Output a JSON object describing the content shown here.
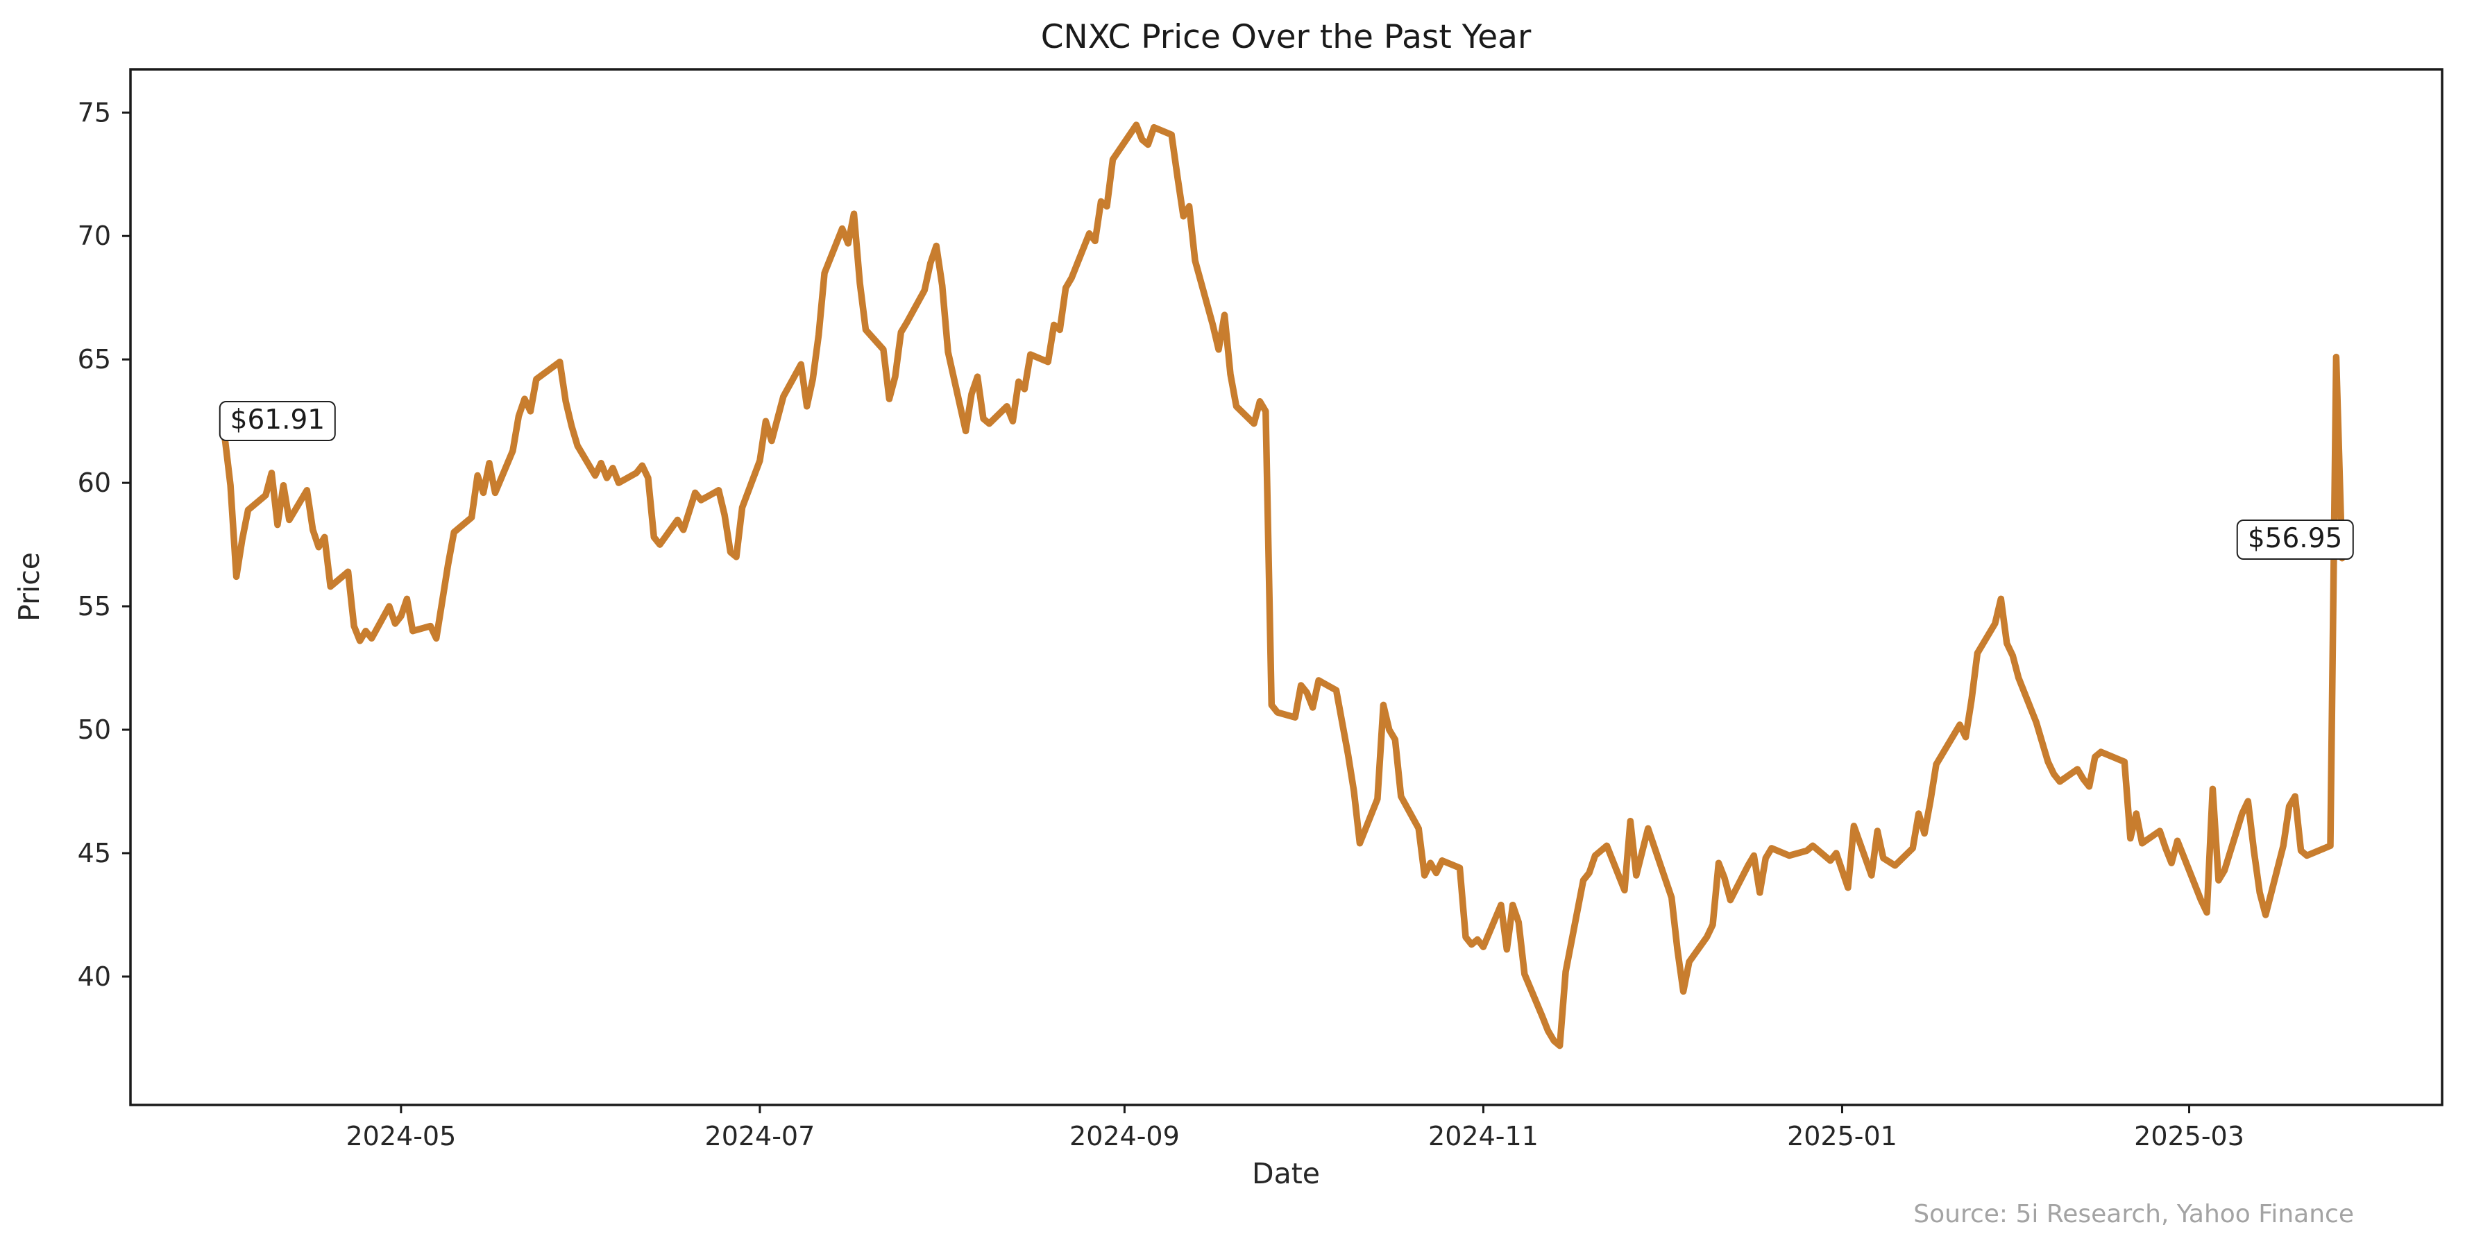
{
  "chart_data": {
    "type": "line",
    "title": "CNXC Price Over the Past Year",
    "xlabel": "Date",
    "ylabel": "Price",
    "line_color": "#C87D2E",
    "axis_color": "#1a1a1a",
    "text_color": "#262626",
    "grid": "off",
    "legend": "none",
    "xlim": [
      "2024-03-16",
      "2025-04-13"
    ],
    "ylim": [
      34.8,
      76.75
    ],
    "y_ticks": [
      40,
      45,
      50,
      55,
      60,
      65,
      70,
      75
    ],
    "x_ticks": [
      {
        "date": "2024-05-01",
        "label": "2024-05"
      },
      {
        "date": "2024-07-01",
        "label": "2024-07"
      },
      {
        "date": "2024-09-01",
        "label": "2024-09"
      },
      {
        "date": "2024-11-01",
        "label": "2024-11"
      },
      {
        "date": "2025-01-01",
        "label": "2025-01"
      },
      {
        "date": "2025-03-01",
        "label": "2025-03"
      }
    ],
    "annotations": [
      {
        "text": "$61.91",
        "date": "2024-04-10",
        "value": 62.5
      },
      {
        "text": "$56.95",
        "date": "2025-03-19",
        "value": 57.7
      }
    ],
    "series": [
      {
        "name": "CNXC",
        "points": [
          [
            "2024-04-01",
            61.91
          ],
          [
            "2024-04-02",
            59.9
          ],
          [
            "2024-04-03",
            56.2
          ],
          [
            "2024-04-04",
            57.7
          ],
          [
            "2024-04-05",
            58.9
          ],
          [
            "2024-04-08",
            59.5
          ],
          [
            "2024-04-09",
            60.4
          ],
          [
            "2024-04-10",
            58.3
          ],
          [
            "2024-04-11",
            59.9
          ],
          [
            "2024-04-12",
            58.5
          ],
          [
            "2024-04-15",
            59.7
          ],
          [
            "2024-04-16",
            58.1
          ],
          [
            "2024-04-17",
            57.4
          ],
          [
            "2024-04-18",
            57.8
          ],
          [
            "2024-04-19",
            55.8
          ],
          [
            "2024-04-22",
            56.4
          ],
          [
            "2024-04-23",
            54.2
          ],
          [
            "2024-04-24",
            53.6
          ],
          [
            "2024-04-25",
            54.0
          ],
          [
            "2024-04-26",
            53.7
          ],
          [
            "2024-04-29",
            55.0
          ],
          [
            "2024-04-30",
            54.3
          ],
          [
            "2024-05-01",
            54.6
          ],
          [
            "2024-05-02",
            55.3
          ],
          [
            "2024-05-03",
            54.0
          ],
          [
            "2024-05-06",
            54.2
          ],
          [
            "2024-05-07",
            53.7
          ],
          [
            "2024-05-08",
            55.2
          ],
          [
            "2024-05-09",
            56.7
          ],
          [
            "2024-05-10",
            58.0
          ],
          [
            "2024-05-13",
            58.6
          ],
          [
            "2024-05-14",
            60.3
          ],
          [
            "2024-05-15",
            59.6
          ],
          [
            "2024-05-16",
            60.8
          ],
          [
            "2024-05-17",
            59.6
          ],
          [
            "2024-05-20",
            61.3
          ],
          [
            "2024-05-21",
            62.7
          ],
          [
            "2024-05-22",
            63.4
          ],
          [
            "2024-05-23",
            62.9
          ],
          [
            "2024-05-24",
            64.2
          ],
          [
            "2024-05-28",
            64.9
          ],
          [
            "2024-05-29",
            63.3
          ],
          [
            "2024-05-30",
            62.3
          ],
          [
            "2024-05-31",
            61.5
          ],
          [
            "2024-06-03",
            60.3
          ],
          [
            "2024-06-04",
            60.8
          ],
          [
            "2024-06-05",
            60.2
          ],
          [
            "2024-06-06",
            60.6
          ],
          [
            "2024-06-07",
            60.0
          ],
          [
            "2024-06-10",
            60.4
          ],
          [
            "2024-06-11",
            60.7
          ],
          [
            "2024-06-12",
            60.2
          ],
          [
            "2024-06-13",
            57.8
          ],
          [
            "2024-06-14",
            57.5
          ],
          [
            "2024-06-17",
            58.5
          ],
          [
            "2024-06-18",
            58.1
          ],
          [
            "2024-06-20",
            59.6
          ],
          [
            "2024-06-21",
            59.3
          ],
          [
            "2024-06-24",
            59.7
          ],
          [
            "2024-06-25",
            58.7
          ],
          [
            "2024-06-26",
            57.2
          ],
          [
            "2024-06-27",
            57.0
          ],
          [
            "2024-06-28",
            59.0
          ],
          [
            "2024-07-01",
            60.9
          ],
          [
            "2024-07-02",
            62.5
          ],
          [
            "2024-07-03",
            61.7
          ],
          [
            "2024-07-05",
            63.5
          ],
          [
            "2024-07-08",
            64.8
          ],
          [
            "2024-07-09",
            63.1
          ],
          [
            "2024-07-10",
            64.2
          ],
          [
            "2024-07-11",
            66.0
          ],
          [
            "2024-07-12",
            68.5
          ],
          [
            "2024-07-15",
            70.3
          ],
          [
            "2024-07-16",
            69.7
          ],
          [
            "2024-07-17",
            70.9
          ],
          [
            "2024-07-18",
            68.1
          ],
          [
            "2024-07-19",
            66.2
          ],
          [
            "2024-07-22",
            65.4
          ],
          [
            "2024-07-23",
            63.4
          ],
          [
            "2024-07-24",
            64.3
          ],
          [
            "2024-07-25",
            66.1
          ],
          [
            "2024-07-26",
            66.5
          ],
          [
            "2024-07-29",
            67.8
          ],
          [
            "2024-07-30",
            68.9
          ],
          [
            "2024-07-31",
            69.6
          ],
          [
            "2024-08-01",
            68.0
          ],
          [
            "2024-08-02",
            65.3
          ],
          [
            "2024-08-05",
            62.1
          ],
          [
            "2024-08-06",
            63.6
          ],
          [
            "2024-08-07",
            64.3
          ],
          [
            "2024-08-08",
            62.6
          ],
          [
            "2024-08-09",
            62.4
          ],
          [
            "2024-08-12",
            63.1
          ],
          [
            "2024-08-13",
            62.5
          ],
          [
            "2024-08-14",
            64.1
          ],
          [
            "2024-08-15",
            63.8
          ],
          [
            "2024-08-16",
            65.2
          ],
          [
            "2024-08-19",
            64.9
          ],
          [
            "2024-08-20",
            66.4
          ],
          [
            "2024-08-21",
            66.2
          ],
          [
            "2024-08-22",
            67.9
          ],
          [
            "2024-08-23",
            68.3
          ],
          [
            "2024-08-26",
            70.1
          ],
          [
            "2024-08-27",
            69.8
          ],
          [
            "2024-08-28",
            71.4
          ],
          [
            "2024-08-29",
            71.2
          ],
          [
            "2024-08-30",
            73.1
          ],
          [
            "2024-09-03",
            74.5
          ],
          [
            "2024-09-04",
            73.9
          ],
          [
            "2024-09-05",
            73.7
          ],
          [
            "2024-09-06",
            74.4
          ],
          [
            "2024-09-09",
            74.1
          ],
          [
            "2024-09-10",
            72.4
          ],
          [
            "2024-09-11",
            70.8
          ],
          [
            "2024-09-12",
            71.2
          ],
          [
            "2024-09-13",
            69.0
          ],
          [
            "2024-09-16",
            66.4
          ],
          [
            "2024-09-17",
            65.4
          ],
          [
            "2024-09-18",
            66.8
          ],
          [
            "2024-09-19",
            64.4
          ],
          [
            "2024-09-20",
            63.1
          ],
          [
            "2024-09-23",
            62.4
          ],
          [
            "2024-09-24",
            63.3
          ],
          [
            "2024-09-25",
            62.9
          ],
          [
            "2024-09-26",
            51.0
          ],
          [
            "2024-09-27",
            50.7
          ],
          [
            "2024-09-30",
            50.5
          ],
          [
            "2024-10-01",
            51.8
          ],
          [
            "2024-10-02",
            51.5
          ],
          [
            "2024-10-03",
            50.9
          ],
          [
            "2024-10-04",
            52.0
          ],
          [
            "2024-10-07",
            51.6
          ],
          [
            "2024-10-08",
            50.3
          ],
          [
            "2024-10-09",
            49.0
          ],
          [
            "2024-10-10",
            47.5
          ],
          [
            "2024-10-11",
            45.4
          ],
          [
            "2024-10-14",
            47.2
          ],
          [
            "2024-10-15",
            51.0
          ],
          [
            "2024-10-16",
            50.0
          ],
          [
            "2024-10-17",
            49.6
          ],
          [
            "2024-10-18",
            47.3
          ],
          [
            "2024-10-21",
            46.0
          ],
          [
            "2024-10-22",
            44.1
          ],
          [
            "2024-10-23",
            44.6
          ],
          [
            "2024-10-24",
            44.2
          ],
          [
            "2024-10-25",
            44.7
          ],
          [
            "2024-10-28",
            44.4
          ],
          [
            "2024-10-29",
            41.6
          ],
          [
            "2024-10-30",
            41.3
          ],
          [
            "2024-10-31",
            41.5
          ],
          [
            "2024-11-01",
            41.2
          ],
          [
            "2024-11-04",
            42.9
          ],
          [
            "2024-11-05",
            41.1
          ],
          [
            "2024-11-06",
            42.9
          ],
          [
            "2024-11-07",
            42.2
          ],
          [
            "2024-11-08",
            40.1
          ],
          [
            "2024-11-11",
            38.4
          ],
          [
            "2024-11-12",
            37.8
          ],
          [
            "2024-11-13",
            37.4
          ],
          [
            "2024-11-14",
            37.2
          ],
          [
            "2024-11-15",
            40.2
          ],
          [
            "2024-11-18",
            43.9
          ],
          [
            "2024-11-19",
            44.2
          ],
          [
            "2024-11-20",
            44.9
          ],
          [
            "2024-11-21",
            45.1
          ],
          [
            "2024-11-22",
            45.3
          ],
          [
            "2024-11-25",
            43.5
          ],
          [
            "2024-11-26",
            46.3
          ],
          [
            "2024-11-27",
            44.1
          ],
          [
            "2024-11-29",
            46.0
          ],
          [
            "2024-12-02",
            43.9
          ],
          [
            "2024-12-03",
            43.2
          ],
          [
            "2024-12-04",
            41.1
          ],
          [
            "2024-12-05",
            39.4
          ],
          [
            "2024-12-06",
            40.6
          ],
          [
            "2024-12-09",
            41.6
          ],
          [
            "2024-12-10",
            42.1
          ],
          [
            "2024-12-11",
            44.6
          ],
          [
            "2024-12-12",
            44.0
          ],
          [
            "2024-12-13",
            43.1
          ],
          [
            "2024-12-16",
            44.5
          ],
          [
            "2024-12-17",
            44.9
          ],
          [
            "2024-12-18",
            43.4
          ],
          [
            "2024-12-19",
            44.8
          ],
          [
            "2024-12-20",
            45.2
          ],
          [
            "2024-12-23",
            44.9
          ],
          [
            "2024-12-26",
            45.1
          ],
          [
            "2024-12-27",
            45.3
          ],
          [
            "2024-12-30",
            44.7
          ],
          [
            "2024-12-31",
            45.0
          ],
          [
            "2025-01-02",
            43.6
          ],
          [
            "2025-01-03",
            46.1
          ],
          [
            "2025-01-06",
            44.1
          ],
          [
            "2025-01-07",
            45.9
          ],
          [
            "2025-01-08",
            44.8
          ],
          [
            "2025-01-10",
            44.5
          ],
          [
            "2025-01-13",
            45.2
          ],
          [
            "2025-01-14",
            46.6
          ],
          [
            "2025-01-15",
            45.8
          ],
          [
            "2025-01-16",
            47.1
          ],
          [
            "2025-01-17",
            48.6
          ],
          [
            "2025-01-21",
            50.2
          ],
          [
            "2025-01-22",
            49.7
          ],
          [
            "2025-01-23",
            51.2
          ],
          [
            "2025-01-24",
            53.1
          ],
          [
            "2025-01-27",
            54.3
          ],
          [
            "2025-01-28",
            55.3
          ],
          [
            "2025-01-29",
            53.5
          ],
          [
            "2025-01-30",
            53.0
          ],
          [
            "2025-01-31",
            52.1
          ],
          [
            "2025-02-03",
            50.3
          ],
          [
            "2025-02-04",
            49.5
          ],
          [
            "2025-02-05",
            48.7
          ],
          [
            "2025-02-06",
            48.2
          ],
          [
            "2025-02-07",
            47.9
          ],
          [
            "2025-02-10",
            48.4
          ],
          [
            "2025-02-11",
            48.0
          ],
          [
            "2025-02-12",
            47.7
          ],
          [
            "2025-02-13",
            48.9
          ],
          [
            "2025-02-14",
            49.1
          ],
          [
            "2025-02-18",
            48.7
          ],
          [
            "2025-02-19",
            45.6
          ],
          [
            "2025-02-20",
            46.6
          ],
          [
            "2025-02-21",
            45.4
          ],
          [
            "2025-02-24",
            45.9
          ],
          [
            "2025-02-25",
            45.2
          ],
          [
            "2025-02-26",
            44.6
          ],
          [
            "2025-02-27",
            45.5
          ],
          [
            "2025-02-28",
            44.9
          ],
          [
            "2025-03-03",
            43.1
          ],
          [
            "2025-03-04",
            42.6
          ],
          [
            "2025-03-05",
            47.6
          ],
          [
            "2025-03-06",
            43.9
          ],
          [
            "2025-03-07",
            44.3
          ],
          [
            "2025-03-10",
            46.6
          ],
          [
            "2025-03-11",
            47.1
          ],
          [
            "2025-03-12",
            45.1
          ],
          [
            "2025-03-13",
            43.4
          ],
          [
            "2025-03-14",
            42.5
          ],
          [
            "2025-03-17",
            45.3
          ],
          [
            "2025-03-18",
            46.9
          ],
          [
            "2025-03-19",
            47.3
          ],
          [
            "2025-03-20",
            45.1
          ],
          [
            "2025-03-21",
            44.9
          ],
          [
            "2025-03-24",
            45.2
          ],
          [
            "2025-03-25",
            45.3
          ],
          [
            "2025-03-26",
            65.1
          ],
          [
            "2025-03-27",
            56.95
          ]
        ]
      }
    ]
  },
  "footer": {
    "source": "Source: 5i Research, Yahoo Finance"
  }
}
